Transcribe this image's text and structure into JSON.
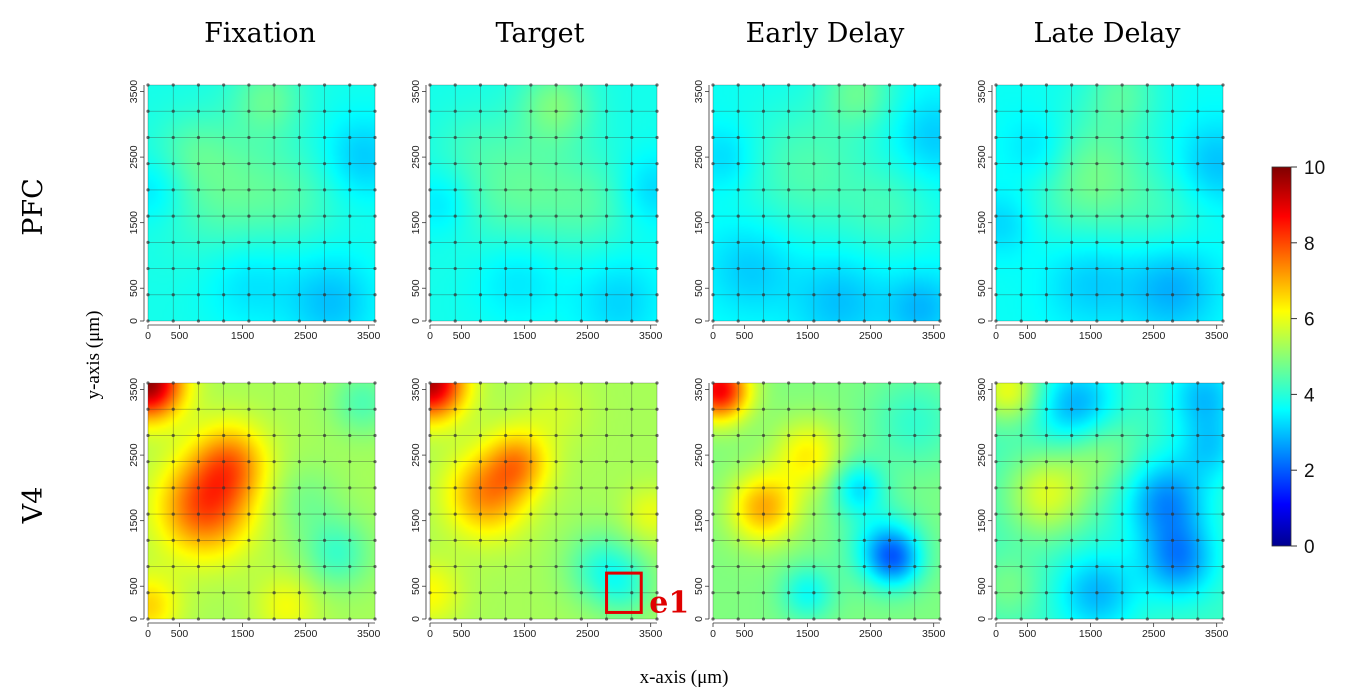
{
  "chart_data": {
    "type": "heatmap",
    "columns": [
      "Fixation",
      "Target",
      "Early Delay",
      "Late Delay"
    ],
    "rows": [
      "PFC",
      "V4"
    ],
    "xlabel": "x-axis (μm)",
    "ylabel": "y-axis (μm)",
    "x_ticks": [
      "0",
      "500",
      "1500",
      "2500",
      "3500"
    ],
    "y_ticks": [
      "0",
      "500",
      "1500",
      "2500",
      "3500"
    ],
    "x_tick_values": [
      0,
      500,
      1500,
      2500,
      3500
    ],
    "y_tick_values": [
      0,
      500,
      1500,
      2500,
      3500
    ],
    "xlim": [
      0,
      3600
    ],
    "ylim": [
      0,
      3600
    ],
    "electrode_grid": [
      0,
      400,
      800,
      1200,
      1600,
      2000,
      2400,
      2800,
      3200,
      3600
    ],
    "grid": true,
    "colorbar": {
      "min": 0,
      "max": 10,
      "ticks": [
        "0",
        "2",
        "4",
        "6",
        "8",
        "10"
      ],
      "tick_values": [
        0,
        2,
        4,
        6,
        8,
        10
      ],
      "colormap": "jet",
      "position": "right"
    },
    "annotation": {
      "label": "e1",
      "panel": "V4 / Target",
      "color": "#e00000",
      "x_range": [
        2800,
        3350
      ],
      "y_range": [
        100,
        700
      ]
    },
    "panels": [
      {
        "row": "PFC",
        "column": "Fixation",
        "base": 3.8,
        "blobs": [
          {
            "x": 1300,
            "y": 2000,
            "v": 4.6,
            "s": 700
          },
          {
            "x": 1900,
            "y": 3400,
            "v": 4.6,
            "s": 400
          },
          {
            "x": 2400,
            "y": 1900,
            "v": 4.2,
            "s": 500
          },
          {
            "x": 700,
            "y": 2600,
            "v": 4.2,
            "s": 400
          },
          {
            "x": 3400,
            "y": 2500,
            "v": 3.1,
            "s": 450
          },
          {
            "x": 2900,
            "y": 300,
            "v": 3.0,
            "s": 500
          },
          {
            "x": 1600,
            "y": 600,
            "v": 3.3,
            "s": 500
          },
          {
            "x": 100,
            "y": 2000,
            "v": 3.3,
            "s": 350
          }
        ]
      },
      {
        "row": "PFC",
        "column": "Target",
        "base": 3.8,
        "blobs": [
          {
            "x": 1400,
            "y": 2000,
            "v": 4.6,
            "s": 700
          },
          {
            "x": 2000,
            "y": 3300,
            "v": 4.8,
            "s": 400
          },
          {
            "x": 2600,
            "y": 1800,
            "v": 4.3,
            "s": 500
          },
          {
            "x": 600,
            "y": 2700,
            "v": 4.0,
            "s": 400
          },
          {
            "x": 3500,
            "y": 2000,
            "v": 3.2,
            "s": 400
          },
          {
            "x": 3000,
            "y": 300,
            "v": 3.2,
            "s": 500
          },
          {
            "x": 1400,
            "y": 700,
            "v": 3.3,
            "s": 500
          },
          {
            "x": 200,
            "y": 1800,
            "v": 3.3,
            "s": 350
          }
        ]
      },
      {
        "row": "PFC",
        "column": "Early Delay",
        "base": 3.7,
        "blobs": [
          {
            "x": 1500,
            "y": 2300,
            "v": 4.4,
            "s": 700
          },
          {
            "x": 2300,
            "y": 3500,
            "v": 4.6,
            "s": 400
          },
          {
            "x": 2800,
            "y": 1700,
            "v": 4.2,
            "s": 500
          },
          {
            "x": 3500,
            "y": 2800,
            "v": 3.1,
            "s": 450
          },
          {
            "x": 2000,
            "y": 300,
            "v": 3.0,
            "s": 500
          },
          {
            "x": 600,
            "y": 800,
            "v": 3.1,
            "s": 500
          },
          {
            "x": 200,
            "y": 2500,
            "v": 3.2,
            "s": 350
          },
          {
            "x": 3300,
            "y": 200,
            "v": 2.9,
            "s": 400
          }
        ]
      },
      {
        "row": "PFC",
        "column": "Late Delay",
        "base": 3.7,
        "blobs": [
          {
            "x": 1500,
            "y": 2200,
            "v": 4.8,
            "s": 650
          },
          {
            "x": 2000,
            "y": 3500,
            "v": 4.4,
            "s": 400
          },
          {
            "x": 2700,
            "y": 1600,
            "v": 4.1,
            "s": 500
          },
          {
            "x": 700,
            "y": 2600,
            "v": 3.1,
            "s": 400
          },
          {
            "x": 3500,
            "y": 2400,
            "v": 3.0,
            "s": 450
          },
          {
            "x": 2800,
            "y": 500,
            "v": 2.8,
            "s": 500
          },
          {
            "x": 1500,
            "y": 600,
            "v": 3.1,
            "s": 500
          },
          {
            "x": 100,
            "y": 1500,
            "v": 3.2,
            "s": 350
          }
        ]
      },
      {
        "row": "V4",
        "column": "Fixation",
        "base": 5.3,
        "blobs": [
          {
            "x": 0,
            "y": 3600,
            "v": 9.8,
            "s": 380
          },
          {
            "x": 900,
            "y": 1700,
            "v": 7.9,
            "s": 520
          },
          {
            "x": 1300,
            "y": 2400,
            "v": 7.2,
            "s": 420
          },
          {
            "x": 3000,
            "y": 1000,
            "v": 4.2,
            "s": 380
          },
          {
            "x": 3400,
            "y": 3300,
            "v": 4.4,
            "s": 350
          },
          {
            "x": 2500,
            "y": 1800,
            "v": 4.8,
            "s": 400
          },
          {
            "x": 0,
            "y": 200,
            "v": 6.6,
            "s": 350
          },
          {
            "x": 2200,
            "y": 200,
            "v": 6.1,
            "s": 350
          }
        ]
      },
      {
        "row": "V4",
        "column": "Target",
        "base": 5.3,
        "blobs": [
          {
            "x": 0,
            "y": 3600,
            "v": 9.5,
            "s": 380
          },
          {
            "x": 900,
            "y": 1900,
            "v": 7.3,
            "s": 450
          },
          {
            "x": 1400,
            "y": 2400,
            "v": 7.0,
            "s": 350
          },
          {
            "x": 2700,
            "y": 800,
            "v": 4.2,
            "s": 400
          },
          {
            "x": 3100,
            "y": 500,
            "v": 4.4,
            "s": 350
          },
          {
            "x": 3500,
            "y": 1600,
            "v": 6.0,
            "s": 300
          },
          {
            "x": 0,
            "y": 400,
            "v": 6.2,
            "s": 350
          },
          {
            "x": 2000,
            "y": 3200,
            "v": 5.7,
            "s": 400
          }
        ]
      },
      {
        "row": "V4",
        "column": "Early Delay",
        "base": 4.9,
        "blobs": [
          {
            "x": 100,
            "y": 3500,
            "v": 8.8,
            "s": 330
          },
          {
            "x": 800,
            "y": 1700,
            "v": 7.0,
            "s": 380
          },
          {
            "x": 1500,
            "y": 2500,
            "v": 6.3,
            "s": 380
          },
          {
            "x": 2700,
            "y": 1100,
            "v": 3.4,
            "s": 400
          },
          {
            "x": 2900,
            "y": 900,
            "v": 3.2,
            "s": 300
          },
          {
            "x": 2300,
            "y": 2000,
            "v": 3.4,
            "s": 300
          },
          {
            "x": 1500,
            "y": 400,
            "v": 3.7,
            "s": 300
          },
          {
            "x": 3200,
            "y": 3000,
            "v": 4.1,
            "s": 500
          }
        ]
      },
      {
        "row": "V4",
        "column": "Late Delay",
        "base": 4.2,
        "blobs": [
          {
            "x": 200,
            "y": 3500,
            "v": 6.0,
            "s": 350
          },
          {
            "x": 800,
            "y": 1900,
            "v": 5.8,
            "s": 450
          },
          {
            "x": 1600,
            "y": 2600,
            "v": 5.2,
            "s": 450
          },
          {
            "x": 1300,
            "y": 3200,
            "v": 2.6,
            "s": 450
          },
          {
            "x": 2700,
            "y": 1800,
            "v": 2.5,
            "s": 450
          },
          {
            "x": 2900,
            "y": 900,
            "v": 2.5,
            "s": 400
          },
          {
            "x": 1600,
            "y": 400,
            "v": 2.9,
            "s": 450
          },
          {
            "x": 3300,
            "y": 3400,
            "v": 3.0,
            "s": 400
          },
          {
            "x": 3400,
            "y": 2600,
            "v": 3.3,
            "s": 350
          },
          {
            "x": 200,
            "y": 500,
            "v": 4.8,
            "s": 350
          }
        ]
      }
    ]
  }
}
